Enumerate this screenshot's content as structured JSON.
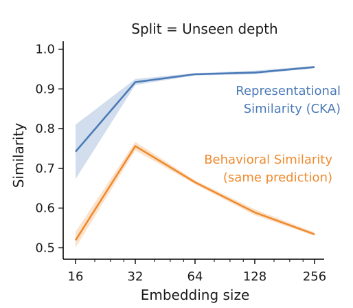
{
  "chart_data": {
    "type": "line",
    "title": "Split = Unseen depth",
    "xlabel": "Embedding size",
    "ylabel": "Similarity",
    "x_scale": "log2",
    "x": [
      16,
      32,
      64,
      128,
      256
    ],
    "x_tick_labels": [
      "16",
      "32",
      "64",
      "128",
      "256"
    ],
    "ylim": [
      0.48,
      1.02
    ],
    "y_ticks": [
      0.5,
      0.6,
      0.7,
      0.8,
      0.9,
      1.0
    ],
    "y_tick_labels": [
      "0.5",
      "0.6",
      "0.7",
      "0.8",
      "0.9",
      "1.0"
    ],
    "grid": false,
    "series": [
      {
        "name": "Representational Similarity (CKA)",
        "label_lines": [
          "Representational",
          "Similarity (CKA)"
        ],
        "color": "#4a7ab7",
        "values": [
          0.742,
          0.917,
          0.937,
          0.941,
          0.955
        ],
        "lower": [
          0.673,
          0.91,
          0.934,
          0.937,
          0.952
        ],
        "upper": [
          0.81,
          0.925,
          0.94,
          0.946,
          0.958
        ]
      },
      {
        "name": "Behavioral Similarity (same prediction)",
        "label_lines": [
          "Behavioral Similarity",
          "(same prediction)"
        ],
        "color": "#ef8a2e",
        "values": [
          0.519,
          0.756,
          0.665,
          0.589,
          0.534
        ],
        "lower": [
          0.5,
          0.745,
          0.66,
          0.582,
          0.53
        ],
        "upper": [
          0.54,
          0.767,
          0.67,
          0.597,
          0.539
        ]
      }
    ]
  }
}
